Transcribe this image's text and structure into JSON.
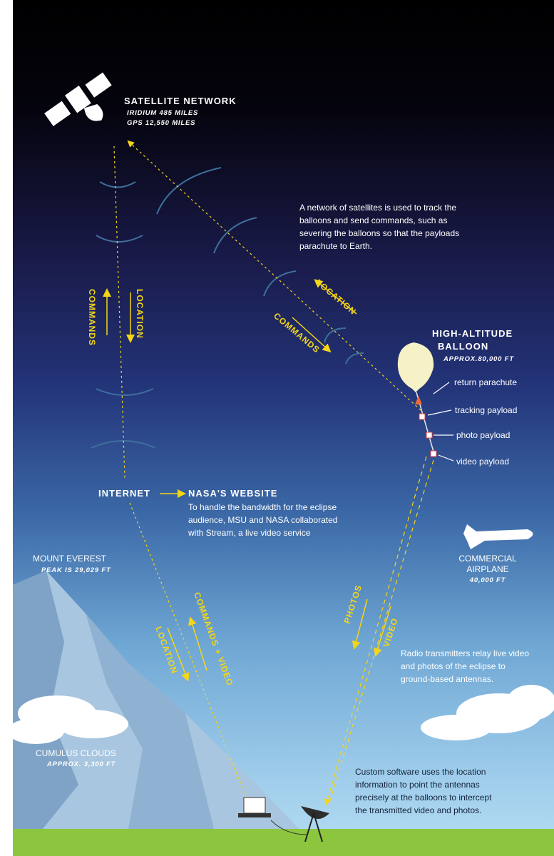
{
  "satellite": {
    "title": "SATELLITE NETWORK",
    "lines": [
      "IRIDIUM 485 MILES",
      "GPS 12,550 MILES"
    ]
  },
  "satellite_note": [
    "A network of satellites is used to track the",
    "balloons and send commands, such as",
    "severing the balloons so that the payloads",
    "parachute to Earth."
  ],
  "links": {
    "left_up": "COMMANDS",
    "left_down": "LOCATION",
    "diag_up": "LOCATION",
    "diag_down": "COMMANDS",
    "low_down": "LOCATION",
    "low_up": "COMMANDS + VIDEO",
    "photos": "PHOTOS",
    "video": "VIDEO"
  },
  "balloon": {
    "title": [
      "HIGH-ALTITUDE",
      "BALLOON"
    ],
    "altitude": "APPROX.80,000 FT",
    "parts": [
      "return parachute",
      "tracking payload",
      "photo payload",
      "video payload"
    ]
  },
  "internet": {
    "from": "INTERNET",
    "to": "NASA'S WEBSITE",
    "note": [
      "To handle the bandwidth for the eclipse",
      "audience, MSU and NASA collaborated",
      "with Stream, a live video service"
    ]
  },
  "everest": {
    "title": "MOUNT EVEREST",
    "height": "PEAK IS 29,029 FT"
  },
  "airplane": {
    "title": [
      "COMMERCIAL",
      "AIRPLANE"
    ],
    "altitude": "40,000 FT"
  },
  "radio_note": [
    "Radio transmitters relay live video",
    "and photos of the eclipse to",
    "ground-based antennas."
  ],
  "clouds": {
    "title": "CUMULUS CLOUDS",
    "altitude": "APPROX. 3,300 FT"
  },
  "software_note": [
    "Custom software uses the location",
    "information to point the antennas",
    "precisely at the balloons to intercept",
    "the transmitted video and photos."
  ]
}
